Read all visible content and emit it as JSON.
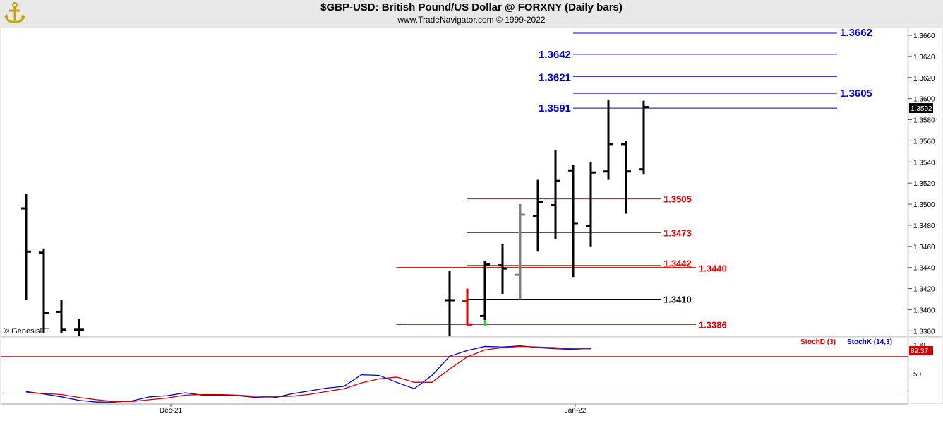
{
  "header": {
    "title": "$GBP-USD:  British Pound/US Dollar @ FORXNY  (Daily bars)",
    "subtitle": "www.TradeNavigator.com © 1999-2022"
  },
  "watermark": "© GenesisFT",
  "chart_data": [
    {
      "type": "ohlc",
      "title": "$GBP-USD:  British Pound/US Dollar @ FORXNY  (Daily bars)",
      "ylim": [
        1.3375,
        1.3672
      ],
      "y_ticks": [
        "1.3380",
        "1.3400",
        "1.3420",
        "1.3440",
        "1.3460",
        "1.3480",
        "1.3500",
        "1.3520",
        "1.3540",
        "1.3560",
        "1.3580",
        "1.3600",
        "1.3620",
        "1.3640",
        "1.3660"
      ],
      "x_labels": [
        "Dec-21",
        "Jan-22"
      ],
      "last_price": "1.3592",
      "colors": {
        "bar": "#000000",
        "bar_gray": "#808080",
        "bar_red": "#e00000",
        "resistance": "#0000cc",
        "support": "#dd0000",
        "pivot": "#000000"
      },
      "bars": [
        {
          "o": 1.3496,
          "h": 1.351,
          "l": 1.3409,
          "c": 1.3455
        },
        {
          "o": 1.3454,
          "h": 1.3458,
          "l": 1.3378,
          "c": 1.3397
        },
        {
          "o": 1.3398,
          "h": 1.3409,
          "l": 1.3378,
          "c": 1.3381
        },
        {
          "o": 1.3381,
          "h": 1.3391,
          "l": 1.3375,
          "c": 1.3381
        },
        {
          "o": 1.3409,
          "h": 1.3437,
          "l": 1.3375,
          "c": 1.3409
        },
        {
          "o": 1.3408,
          "h": 1.342,
          "l": 1.3386,
          "c": 1.3386,
          "color": "red"
        },
        {
          "o": 1.3394,
          "h": 1.3446,
          "l": 1.339,
          "c": 1.3443
        },
        {
          "o": 1.3442,
          "h": 1.3462,
          "l": 1.3415,
          "c": 1.3439
        },
        {
          "o": 1.3433,
          "h": 1.35,
          "l": 1.341,
          "c": 1.349,
          "color": "gray"
        },
        {
          "o": 1.3489,
          "h": 1.3523,
          "l": 1.3455,
          "c": 1.3502
        },
        {
          "o": 1.3499,
          "h": 1.3551,
          "l": 1.3467,
          "c": 1.3522
        },
        {
          "o": 1.3532,
          "h": 1.3537,
          "l": 1.3431,
          "c": 1.3482
        },
        {
          "o": 1.3479,
          "h": 1.354,
          "l": 1.346,
          "c": 1.353
        },
        {
          "o": 1.3531,
          "h": 1.3599,
          "l": 1.3523,
          "c": 1.3557
        },
        {
          "o": 1.3557,
          "h": 1.356,
          "l": 1.3491,
          "c": 1.3531
        },
        {
          "o": 1.3533,
          "h": 1.3598,
          "l": 1.3528,
          "c": 1.3592
        }
      ],
      "levels": [
        {
          "value": 1.3662,
          "label": "1.3662",
          "kind": "resistance",
          "label_side": "right"
        },
        {
          "value": 1.3642,
          "label": "1.3642",
          "kind": "resistance",
          "label_side": "left"
        },
        {
          "value": 1.3621,
          "label": "1.3621",
          "kind": "resistance",
          "label_side": "left"
        },
        {
          "value": 1.3605,
          "label": "1.3605",
          "kind": "resistance",
          "label_side": "right"
        },
        {
          "value": 1.3591,
          "label": "1.3591",
          "kind": "resistance",
          "label_side": "left"
        },
        {
          "value": 1.3505,
          "label": "1.3505",
          "kind": "support",
          "label_side": "right"
        },
        {
          "value": 1.3473,
          "label": "1.3473",
          "kind": "support",
          "label_side": "right"
        },
        {
          "value": 1.3442,
          "label": "1.3442",
          "kind": "support",
          "label_side": "right"
        },
        {
          "value": 1.344,
          "label": "1.3440",
          "kind": "support",
          "label_side": "right"
        },
        {
          "value": 1.341,
          "label": "1.3410",
          "kind": "pivot",
          "label_side": "right"
        },
        {
          "value": 1.3386,
          "label": "1.3386",
          "kind": "support",
          "label_side": "right"
        }
      ]
    },
    {
      "type": "line",
      "ylim": [
        0,
        100
      ],
      "y_ticks": [
        "50",
        "100"
      ],
      "last_value": "89.37",
      "series": [
        {
          "name": "StochK (14,3)",
          "color": "#0000cc",
          "values": [
            19,
            15,
            10,
            4,
            1,
            1,
            3,
            10,
            12,
            17,
            13,
            13,
            12,
            9,
            8,
            15,
            20,
            25,
            28,
            48,
            47,
            35,
            24,
            47,
            80,
            90,
            97,
            96,
            98,
            95,
            93,
            92,
            94
          ]
        },
        {
          "name": "StochD (3)",
          "color": "#cc0000",
          "values": [
            17,
            16,
            14,
            9,
            5,
            2,
            2,
            5,
            8,
            13,
            14,
            14,
            13,
            11,
            10,
            11,
            14,
            19,
            24,
            34,
            41,
            44,
            35,
            35,
            58,
            79,
            91,
            95,
            97,
            96,
            95,
            93,
            93
          ]
        }
      ],
      "ref_lines": [
        80,
        20
      ]
    }
  ]
}
